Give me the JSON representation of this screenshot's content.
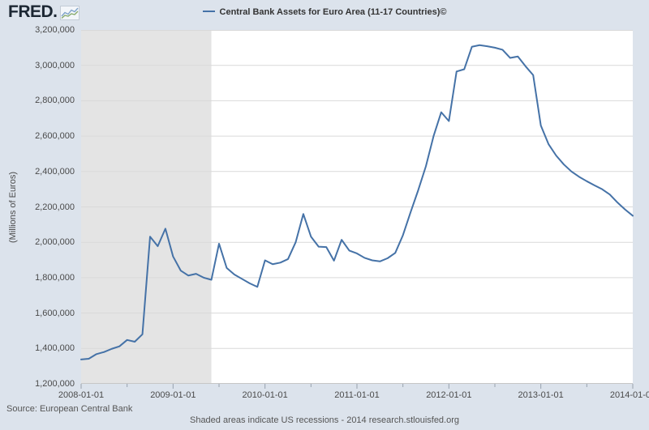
{
  "header": {
    "logo_text": "FRED.",
    "legend_label": "Central Bank Assets for Euro Area (11-17 Countries)©"
  },
  "footer": {
    "source": "Source: European Central Bank",
    "note": "Shaded areas indicate US recessions - 2014 research.stlouisfed.org"
  },
  "colors": {
    "canvas_background": "#dce3ec",
    "plot_background": "#ffffff",
    "line": "#4572a7",
    "recession_shading": "#e4e4e4",
    "gridline": "#d9d9d9",
    "axis_line": "#c6c6c6",
    "tick_mark": "#97a1ad",
    "tick_label_text": "#4a4a4a",
    "legend_text": "#333333",
    "footer_text": "#555555",
    "logo_text": "#1c2733"
  },
  "chart_data": {
    "type": "line",
    "title": "Central Bank Assets for Euro Area (11-17 Countries)©",
    "ylabel": "(Millions of Euros)",
    "xlabel": "",
    "legend_position": "top-center",
    "grid": "horizontal",
    "y_axis": {
      "min": 1200000,
      "max": 3200000,
      "step": 200000,
      "tick_labels": [
        "1,200,000",
        "1,400,000",
        "1,600,000",
        "1,800,000",
        "2,000,000",
        "2,200,000",
        "2,400,000",
        "2,600,000",
        "2,800,000",
        "3,000,000",
        "3,200,000"
      ]
    },
    "x_axis": {
      "start": "2008-01",
      "end": "2014-01",
      "frequency": "monthly",
      "tick_labels": [
        "2008-01-01",
        "2009-01-01",
        "2010-01-01",
        "2011-01-01",
        "2012-01-01",
        "2013-01-01",
        "2014-01-01"
      ]
    },
    "recession_shading": {
      "start": "2008-01",
      "end": "2009-06",
      "note": "US recession"
    },
    "series": [
      {
        "name": "Central Bank Assets for Euro Area (11-17 Countries)",
        "values": [
          1338000,
          1342000,
          1368000,
          1380000,
          1398000,
          1412000,
          1448000,
          1438000,
          1480000,
          2032000,
          1978000,
          2077000,
          1920000,
          1840000,
          1812000,
          1822000,
          1800000,
          1788000,
          1992000,
          1855000,
          1818000,
          1793000,
          1768000,
          1748000,
          1898000,
          1876000,
          1885000,
          1905000,
          2000000,
          2160000,
          2032000,
          1975000,
          1973000,
          1896000,
          2014000,
          1953000,
          1937000,
          1912000,
          1898000,
          1892000,
          1910000,
          1940000,
          2040000,
          2170000,
          2295000,
          2430000,
          2600000,
          2735000,
          2685000,
          2965000,
          2978000,
          3105000,
          3114000,
          3108000,
          3100000,
          3088000,
          3042000,
          3050000,
          2995000,
          2945000,
          2660000,
          2555000,
          2490000,
          2440000,
          2400000,
          2370000,
          2345000,
          2322000,
          2300000,
          2270000,
          2225000,
          2185000,
          2150000
        ]
      }
    ]
  }
}
